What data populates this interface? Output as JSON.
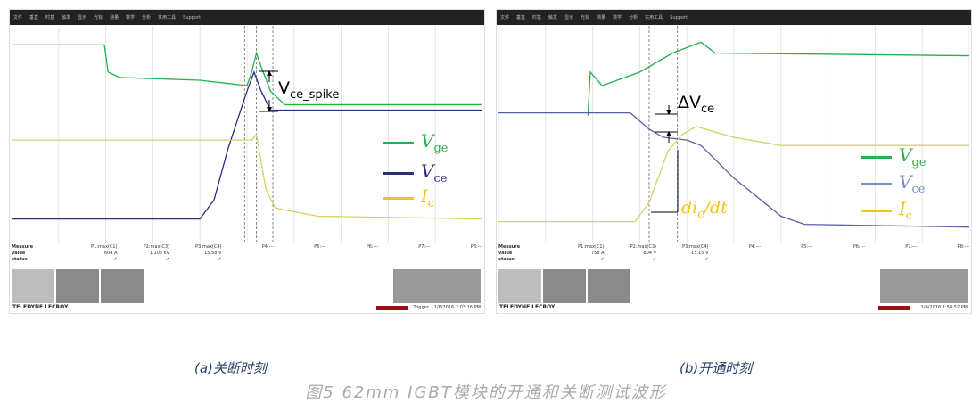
{
  "toolbar": [
    "文件",
    "垂直",
    "时基",
    "触发",
    "显示",
    "光标",
    "测量",
    "数学",
    "分析",
    "实用工具",
    "Support"
  ],
  "chart_data": [
    {
      "type": "line",
      "title": "",
      "xlabel": "",
      "ylabel": "",
      "grid": true,
      "xlim": [
        0,
        10
      ],
      "ylim": [
        0,
        8
      ],
      "series": [
        {
          "name": "Vge",
          "color": "#22b14c",
          "points": [
            [
              0,
              7.3
            ],
            [
              1.97,
              7.3
            ],
            [
              2.05,
              6.3
            ],
            [
              2.3,
              6.1
            ],
            [
              4.0,
              6.0
            ],
            [
              5.0,
              5.8
            ],
            [
              5.1,
              6.3
            ],
            [
              5.2,
              7.0
            ],
            [
              5.3,
              6.5
            ],
            [
              5.5,
              5.6
            ],
            [
              5.8,
              5.1
            ],
            [
              10,
              5.1
            ]
          ]
        },
        {
          "name": "Vce",
          "color": "#2b2f7a",
          "points": [
            [
              0,
              0.9
            ],
            [
              4.0,
              0.9
            ],
            [
              4.3,
              1.6
            ],
            [
              4.6,
              3.5
            ],
            [
              5.0,
              5.6
            ],
            [
              5.15,
              6.3
            ],
            [
              5.3,
              5.6
            ],
            [
              5.5,
              4.9
            ],
            [
              6,
              4.9
            ],
            [
              10,
              4.9
            ]
          ]
        },
        {
          "name": "Ic",
          "color": "#d8d060",
          "points": [
            [
              0,
              3.8
            ],
            [
              5.1,
              3.8
            ],
            [
              5.2,
              4.0
            ],
            [
              5.4,
              2.0
            ],
            [
              5.6,
              1.3
            ],
            [
              6.5,
              1.0
            ],
            [
              10,
              0.9
            ]
          ]
        }
      ],
      "cursors": [
        4.95,
        5.2,
        5.55
      ],
      "annotation": {
        "main": "V",
        "sub": "ce_spike"
      },
      "measure": {
        "label": "Measure",
        "rows": [
          "value",
          "status"
        ],
        "params": [
          "P1:max(C1)",
          "P2:max(C3)",
          "P3:max(C4)",
          "P4:---",
          "P5:---",
          "P6:---",
          "P7:---",
          "P8:---"
        ],
        "values": [
          "604 A",
          "1.105 kV",
          "15.58 V",
          "",
          "",
          "",
          "",
          ""
        ],
        "status": [
          "✔",
          "✔",
          "✔",
          "",
          "",
          "",
          "",
          ""
        ]
      },
      "timestamp": "1/6/2016 2:03:16 PM",
      "trigger": "Trigger",
      "caption": "(a)关断时刻"
    },
    {
      "type": "line",
      "title": "",
      "xlabel": "",
      "ylabel": "",
      "grid": true,
      "xlim": [
        0,
        10
      ],
      "ylim": [
        0,
        8
      ],
      "series": [
        {
          "name": "Vge",
          "color": "#22b14c",
          "points": [
            [
              1.9,
              4.7
            ],
            [
              1.95,
              6.3
            ],
            [
              2.2,
              5.8
            ],
            [
              3.0,
              6.3
            ],
            [
              3.7,
              7.0
            ],
            [
              4.0,
              7.2
            ],
            [
              4.3,
              7.4
            ],
            [
              4.6,
              7.0
            ],
            [
              10,
              6.9
            ]
          ]
        },
        {
          "name": "Vce",
          "color": "#5a5fa8",
          "points": [
            [
              0,
              4.8
            ],
            [
              2.8,
              4.8
            ],
            [
              3.0,
              4.5
            ],
            [
              3.2,
              4.2
            ],
            [
              3.5,
              3.9
            ],
            [
              4.0,
              3.8
            ],
            [
              4.3,
              3.6
            ],
            [
              5.0,
              2.4
            ],
            [
              6.0,
              1.0
            ],
            [
              6.5,
              0.7
            ],
            [
              10,
              0.6
            ]
          ]
        },
        {
          "name": "Ic",
          "color": "#d8d060",
          "points": [
            [
              0,
              0.8
            ],
            [
              2.9,
              0.8
            ],
            [
              3.2,
              1.5
            ],
            [
              3.6,
              3.4
            ],
            [
              3.9,
              4.0
            ],
            [
              4.2,
              4.3
            ],
            [
              4.6,
              4.1
            ],
            [
              5.0,
              3.9
            ],
            [
              6.0,
              3.6
            ],
            [
              10,
              3.6
            ]
          ]
        }
      ],
      "cursors": [
        3.2,
        3.8
      ],
      "annotation": {
        "main": "ΔV",
        "sub": "ce",
        "di": "di",
        "di_sub": "c",
        "dt": "/dt"
      },
      "measure": {
        "label": "Measure",
        "rows": [
          "value",
          "status"
        ],
        "params": [
          "P1:max(C1)",
          "P2:max(C3)",
          "P3:max(C4)",
          "P4:---",
          "P5:---",
          "P6:---",
          "P7:---",
          "P8:---"
        ],
        "values": [
          "758 A",
          "804 V",
          "15.15 V",
          "",
          "",
          "",
          "",
          ""
        ],
        "status": [
          "✔",
          "✔",
          "✔",
          "",
          "",
          "",
          "",
          ""
        ]
      },
      "timestamp": "1/6/2016 1:58:52 PM",
      "trigger": "",
      "caption": "(b)开通时刻"
    }
  ],
  "brand": "TELEDYNE LECROY",
  "legend_colors": {
    "Vge": "#22b14c",
    "Vce_left": "#2b2f7a",
    "Vce_right": "#6f8fc8",
    "Ic": "#f0c419"
  },
  "figure_caption": "图5 62mm IGBT模块的开通和关断测试波形"
}
